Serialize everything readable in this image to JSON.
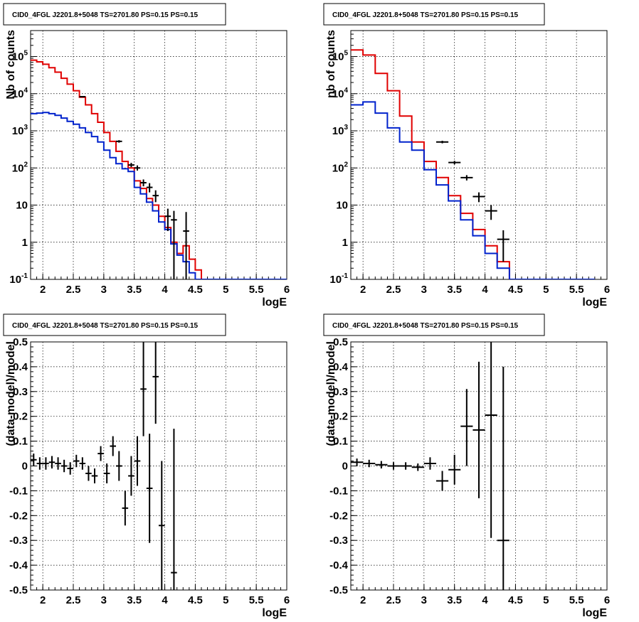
{
  "colors": {
    "data": "#000000",
    "model_total": "#e00000",
    "model_source": "#0022cc",
    "grid": "#000000"
  },
  "chart_data": [
    {
      "id": "tl",
      "type": "line",
      "title": "CID0_4FGL J2201.8+5048 TS=2701.80 PS=0.15 PS=0.15",
      "xlabel": "logE",
      "ylabel": "Nb of counts",
      "xlim": [
        1.8,
        6.0
      ],
      "ylim": [
        0.1,
        500000
      ],
      "yscale": "log",
      "grid": true,
      "x_ticks": [
        "2",
        "2.5",
        "3",
        "3.5",
        "4",
        "4.5",
        "5",
        "5.5",
        "6"
      ],
      "y_ticks": [
        "10^-1",
        "1",
        "10",
        "10^2",
        "10^3",
        "10^4",
        "10^5"
      ],
      "bin_edges": [
        1.8,
        1.9,
        2.0,
        2.1,
        2.2,
        2.3,
        2.4,
        2.5,
        2.6,
        2.7,
        2.8,
        2.9,
        3.0,
        3.1,
        3.2,
        3.3,
        3.4,
        3.5,
        3.6,
        3.7,
        3.8,
        3.9,
        4.0,
        4.1,
        4.2,
        4.3,
        4.4,
        4.5,
        4.6,
        4.7,
        4.8,
        4.9,
        5.0,
        5.1,
        5.2,
        5.3,
        5.4,
        5.5,
        5.6,
        5.7,
        5.8,
        5.9,
        6.0
      ],
      "series": [
        {
          "kind": "step",
          "color": "model_total",
          "values": [
            80000,
            72000,
            62000,
            50000,
            38000,
            26000,
            18000,
            12000,
            8000,
            5000,
            2900,
            1700,
            900,
            520,
            280,
            150,
            100,
            45,
            28,
            15,
            10,
            5,
            2.5,
            1.0,
            0.5,
            0.8,
            0.35,
            0.18,
            0.1,
            0.1,
            0.1,
            0.1,
            0.1,
            0.1,
            0.1,
            0.1,
            0.1,
            0.1,
            0.1,
            0.1,
            0.1,
            0.1
          ]
        },
        {
          "kind": "step",
          "color": "model_source",
          "values": [
            2900,
            3000,
            3100,
            2900,
            2600,
            2200,
            1800,
            1500,
            1200,
            900,
            700,
            500,
            300,
            190,
            130,
            95,
            80,
            30,
            20,
            12,
            7.0,
            3.5,
            2.2,
            0.9,
            0.45,
            0.3,
            0.15,
            0.1,
            0.1,
            0.1,
            0.1,
            0.1,
            0.1,
            0.1,
            0.1,
            0.1,
            0.1,
            0.1,
            0.1,
            0.1,
            0.1,
            0.1
          ]
        },
        {
          "kind": "errorbars",
          "color": "data",
          "xerr": 0.05,
          "points": [
            [
              2.65,
              8300,
              8200,
              8400
            ],
            [
              3.25,
              520,
              480,
              560
            ],
            [
              3.45,
              120,
              105,
              137
            ],
            [
              3.55,
              100,
              85,
              117
            ],
            [
              3.65,
              40,
              32,
              49
            ],
            [
              3.75,
              30,
              22,
              39
            ],
            [
              3.85,
              18,
              12,
              25
            ],
            [
              4.05,
              5,
              2,
              8
            ],
            [
              4.15,
              4,
              0.1,
              7
            ],
            [
              4.35,
              2,
              0.1,
              6.5
            ]
          ]
        }
      ]
    },
    {
      "id": "tr",
      "type": "line",
      "title": "CID0_4FGL J2201.8+5048 TS=2701.80 PS=0.15 PS=0.15",
      "xlabel": "logE",
      "ylabel": "nb of counts",
      "xlim": [
        1.8,
        6.0
      ],
      "ylim": [
        0.1,
        500000
      ],
      "yscale": "log",
      "grid": true,
      "x_ticks": [
        "2",
        "2.5",
        "3",
        "3.5",
        "4",
        "4.5",
        "5",
        "5.5",
        "6"
      ],
      "y_ticks": [
        "10^-1",
        "1",
        "10",
        "10^2",
        "10^3",
        "10^4",
        "10^5"
      ],
      "bin_edges": [
        1.8,
        2.0,
        2.2,
        2.4,
        2.6,
        2.8,
        3.0,
        3.2,
        3.4,
        3.6,
        3.8,
        4.0,
        4.2,
        4.4,
        4.6,
        4.8,
        5.0,
        5.2,
        5.4,
        5.6,
        5.8,
        6.0
      ],
      "series": [
        {
          "kind": "step",
          "color": "model_total",
          "values": [
            150000,
            110000,
            35000,
            12000,
            2500,
            500,
            150,
            55,
            18,
            6,
            2.2,
            0.8,
            0.3,
            0.1,
            0.1,
            0.1,
            0.1,
            0.1,
            0.1,
            0.1
          ]
        },
        {
          "kind": "step",
          "color": "model_source",
          "values": [
            5000,
            6000,
            3000,
            1200,
            500,
            300,
            90,
            35,
            13,
            4,
            1.5,
            0.5,
            0.2,
            0.1,
            0.1,
            0.1,
            0.1,
            0.1,
            0.1,
            0.1
          ]
        },
        {
          "kind": "errorbars",
          "color": "data",
          "xerr": 0.1,
          "points": [
            [
              3.3,
              500,
              460,
              540
            ],
            [
              3.5,
              140,
              125,
              155
            ],
            [
              3.7,
              55,
              46,
              64
            ],
            [
              3.9,
              17,
              12,
              22
            ],
            [
              4.1,
              7,
              4,
              10
            ],
            [
              4.3,
              1.2,
              0.3,
              2.1
            ]
          ]
        }
      ]
    },
    {
      "id": "bl",
      "type": "scatter",
      "title": "CID0_4FGL J2201.8+5048 TS=2701.80 PS=0.15 PS=0.15",
      "xlabel": "logE",
      "ylabel": "(data-model)/model",
      "xlim": [
        1.8,
        6.0
      ],
      "ylim": [
        -0.5,
        0.5
      ],
      "yscale": "linear",
      "grid": true,
      "x_ticks": [
        "2",
        "2.5",
        "3",
        "3.5",
        "4",
        "4.5",
        "5",
        "5.5",
        "6"
      ],
      "y_ticks": [
        "-0.5",
        "-0.4",
        "-0.3",
        "-0.2",
        "-0.1",
        "0",
        "0.1",
        "0.2",
        "0.3",
        "0.4",
        "0.5"
      ],
      "series": [
        {
          "kind": "errorbars",
          "color": "data",
          "xerr": 0.05,
          "points": [
            [
              1.85,
              0.025,
              0.0,
              0.05
            ],
            [
              1.95,
              0.01,
              -0.015,
              0.035
            ],
            [
              2.05,
              0.01,
              -0.015,
              0.035
            ],
            [
              2.15,
              0.015,
              -0.01,
              0.04
            ],
            [
              2.25,
              0.01,
              -0.015,
              0.035
            ],
            [
              2.35,
              0.0,
              -0.025,
              0.025
            ],
            [
              2.45,
              -0.01,
              -0.035,
              0.015
            ],
            [
              2.55,
              0.02,
              -0.005,
              0.045
            ],
            [
              2.65,
              0.01,
              -0.015,
              0.035
            ],
            [
              2.75,
              -0.03,
              -0.06,
              0.0
            ],
            [
              2.85,
              -0.04,
              -0.07,
              -0.01
            ],
            [
              2.95,
              0.05,
              0.02,
              0.08
            ],
            [
              3.05,
              -0.03,
              -0.07,
              0.01
            ],
            [
              3.15,
              0.08,
              0.04,
              0.12
            ],
            [
              3.25,
              0.0,
              -0.06,
              0.06
            ],
            [
              3.35,
              -0.17,
              -0.24,
              -0.1
            ],
            [
              3.45,
              -0.04,
              -0.12,
              0.04
            ],
            [
              3.55,
              0.02,
              -0.08,
              0.12
            ],
            [
              3.65,
              0.31,
              0.12,
              0.5
            ],
            [
              3.75,
              -0.09,
              -0.31,
              0.13
            ],
            [
              3.85,
              0.36,
              0.17,
              0.5
            ],
            [
              3.95,
              -0.24,
              -0.5,
              0.02
            ],
            [
              4.15,
              -0.43,
              -0.5,
              0.15
            ]
          ]
        }
      ]
    },
    {
      "id": "br",
      "type": "scatter",
      "title": "CID0_4FGL J2201.8+5048 TS=2701.80 PS=0.15 PS=0.15",
      "xlabel": "logE",
      "ylabel": "(data-model)/model",
      "xlim": [
        1.8,
        6.0
      ],
      "ylim": [
        -0.5,
        0.5
      ],
      "yscale": "linear",
      "grid": true,
      "x_ticks": [
        "2",
        "2.5",
        "3",
        "3.5",
        "4",
        "4.5",
        "5",
        "5.5",
        "6"
      ],
      "y_ticks": [
        "-0.5",
        "-0.4",
        "-0.3",
        "-0.2",
        "-0.1",
        "0",
        "0.1",
        "0.2",
        "0.3",
        "0.4",
        "0.5"
      ],
      "series": [
        {
          "kind": "errorbars",
          "color": "data",
          "xerr": 0.1,
          "points": [
            [
              1.9,
              0.015,
              0.0,
              0.03
            ],
            [
              2.1,
              0.01,
              -0.005,
              0.025
            ],
            [
              2.3,
              0.005,
              -0.01,
              0.02
            ],
            [
              2.5,
              0.0,
              -0.015,
              0.015
            ],
            [
              2.7,
              0.0,
              -0.015,
              0.015
            ],
            [
              2.9,
              -0.005,
              -0.02,
              0.01
            ],
            [
              3.1,
              0.01,
              -0.015,
              0.035
            ],
            [
              3.3,
              -0.06,
              -0.1,
              -0.02
            ],
            [
              3.5,
              -0.015,
              -0.075,
              0.045
            ],
            [
              3.7,
              0.16,
              0.0,
              0.31
            ],
            [
              3.9,
              0.145,
              -0.13,
              0.42
            ],
            [
              4.1,
              0.205,
              -0.29,
              0.5
            ],
            [
              4.3,
              -0.3,
              -0.5,
              0.4
            ]
          ]
        }
      ]
    }
  ]
}
